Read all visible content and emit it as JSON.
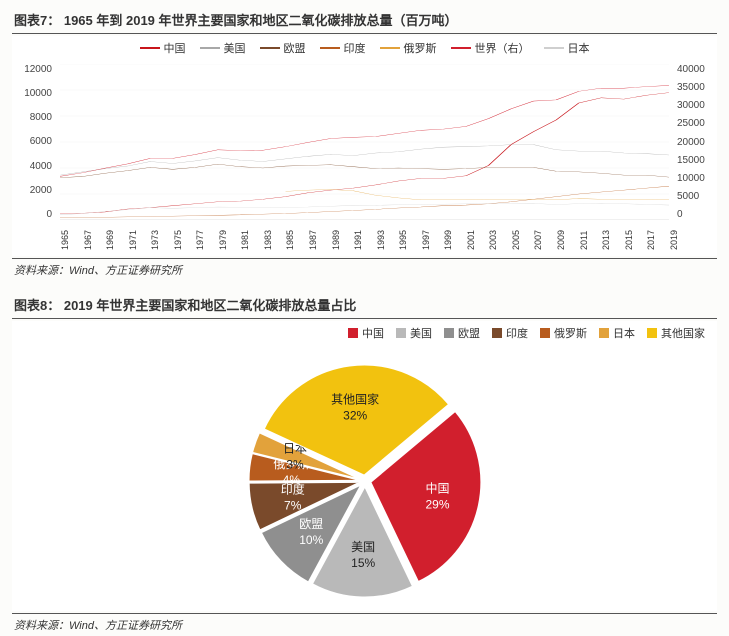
{
  "figure7": {
    "title": "图表7：  1965 年到 2019 年世界主要国家和地区二氧化碳排放总量（百万吨）",
    "source": "资料来源：Wind、方正证券研究所",
    "type": "line",
    "background_color": "#ffffff",
    "grid_color": "#e6e6e6",
    "axis_color": "#999999",
    "label_fontsize": 10,
    "x_categories": [
      "1965",
      "1967",
      "1969",
      "1971",
      "1973",
      "1975",
      "1977",
      "1979",
      "1981",
      "1983",
      "1985",
      "1987",
      "1989",
      "1991",
      "1993",
      "1995",
      "1997",
      "1999",
      "2001",
      "2003",
      "2005",
      "2007",
      "2009",
      "2011",
      "2013",
      "2015",
      "2017",
      "2019"
    ],
    "y_left": {
      "min": 0,
      "max": 12000,
      "step": 2000,
      "ticks": [
        "0",
        "2000",
        "4000",
        "6000",
        "8000",
        "10000",
        "12000"
      ]
    },
    "y_right": {
      "min": 0,
      "max": 40000,
      "step": 5000,
      "ticks": [
        "0",
        "5000",
        "10000",
        "15000",
        "20000",
        "25000",
        "30000",
        "35000",
        "40000"
      ]
    },
    "legend_order": [
      "china",
      "usa",
      "eu",
      "india",
      "russia",
      "world",
      "japan"
    ],
    "series": {
      "china": {
        "label": "中国",
        "color": "#c8151b",
        "axis": "left",
        "values": [
          480,
          520,
          620,
          850,
          950,
          1100,
          1250,
          1400,
          1450,
          1600,
          1800,
          2100,
          2300,
          2450,
          2700,
          3000,
          3200,
          3200,
          3400,
          4200,
          5800,
          6800,
          7700,
          9000,
          9400,
          9300,
          9600,
          9800
        ]
      },
      "usa": {
        "label": "美国",
        "color": "#a8a8a8",
        "axis": "left",
        "values": [
          3450,
          3700,
          3950,
          4150,
          4500,
          4350,
          4550,
          4800,
          4600,
          4500,
          4700,
          4900,
          5050,
          4950,
          5150,
          5250,
          5450,
          5600,
          5650,
          5700,
          5800,
          5800,
          5400,
          5300,
          5300,
          5150,
          5100,
          5000
        ]
      },
      "eu": {
        "label": "欧盟",
        "color": "#7a4a2b",
        "axis": "left",
        "values": [
          3250,
          3350,
          3600,
          3800,
          4050,
          3900,
          4050,
          4300,
          4100,
          4000,
          4150,
          4200,
          4250,
          4100,
          3950,
          4000,
          3950,
          3900,
          3950,
          4050,
          4050,
          4050,
          3750,
          3700,
          3600,
          3450,
          3450,
          3300
        ]
      },
      "india": {
        "label": "印度",
        "color": "#b85c1e",
        "axis": "left",
        "values": [
          170,
          190,
          210,
          240,
          270,
          300,
          330,
          360,
          400,
          450,
          500,
          570,
          650,
          730,
          820,
          920,
          1000,
          1100,
          1150,
          1250,
          1400,
          1600,
          1800,
          2000,
          2150,
          2300,
          2450,
          2600
        ]
      },
      "russia": {
        "label": "俄罗斯",
        "color": "#e2a23b",
        "axis": "left",
        "values": [
          null,
          null,
          null,
          null,
          null,
          null,
          null,
          null,
          null,
          null,
          2200,
          2300,
          2350,
          2250,
          1900,
          1700,
          1550,
          1550,
          1550,
          1600,
          1600,
          1600,
          1550,
          1650,
          1600,
          1600,
          1600,
          1550
        ]
      },
      "japan": {
        "label": "日本",
        "color": "#cfcfcf",
        "axis": "left",
        "values": [
          400,
          500,
          650,
          800,
          950,
          900,
          950,
          1000,
          980,
          950,
          980,
          1000,
          1060,
          1120,
          1130,
          1170,
          1200,
          1220,
          1240,
          1260,
          1270,
          1280,
          1180,
          1260,
          1300,
          1250,
          1200,
          1150
        ]
      },
      "world": {
        "label": "世界（右）",
        "color": "#d11f2d",
        "axis": "right",
        "values": [
          11200,
          12100,
          13300,
          14400,
          15800,
          15800,
          16800,
          18000,
          17800,
          17900,
          18800,
          19900,
          20900,
          21200,
          21400,
          22200,
          23000,
          23300,
          24000,
          26000,
          28500,
          30500,
          30800,
          33000,
          33800,
          33800,
          34200,
          34500
        ]
      }
    }
  },
  "figure8": {
    "title": "图表8：  2019 年世界主要国家和地区二氧化碳排放总量占比",
    "source": "资料来源：Wind、方正证券研究所",
    "type": "pie",
    "background_color": "#ffffff",
    "label_fontsize": 12,
    "start_angle_deg": -40,
    "radius": 110,
    "explode": 6,
    "slices": [
      {
        "key": "china",
        "label": "中国",
        "pct": 29,
        "color": "#d11f2d",
        "label_color": "light"
      },
      {
        "key": "usa",
        "label": "美国",
        "pct": 15,
        "color": "#b9b9b9",
        "label_color": "dark"
      },
      {
        "key": "eu",
        "label": "欧盟",
        "pct": 10,
        "color": "#8f8f8f",
        "label_color": "light"
      },
      {
        "key": "india",
        "label": "印度",
        "pct": 7,
        "color": "#7a4a2b",
        "label_color": "light"
      },
      {
        "key": "russia",
        "label": "俄罗斯",
        "pct": 4,
        "color": "#b85c1e",
        "label_color": "light"
      },
      {
        "key": "japan",
        "label": "日本",
        "pct": 3,
        "color": "#e2a23b",
        "label_color": "dark"
      },
      {
        "key": "other",
        "label": "其他国家",
        "pct": 32,
        "color": "#f2c20f",
        "label_color": "dark"
      }
    ],
    "legend_order": [
      "china",
      "usa",
      "eu",
      "india",
      "russia",
      "japan",
      "other"
    ]
  }
}
